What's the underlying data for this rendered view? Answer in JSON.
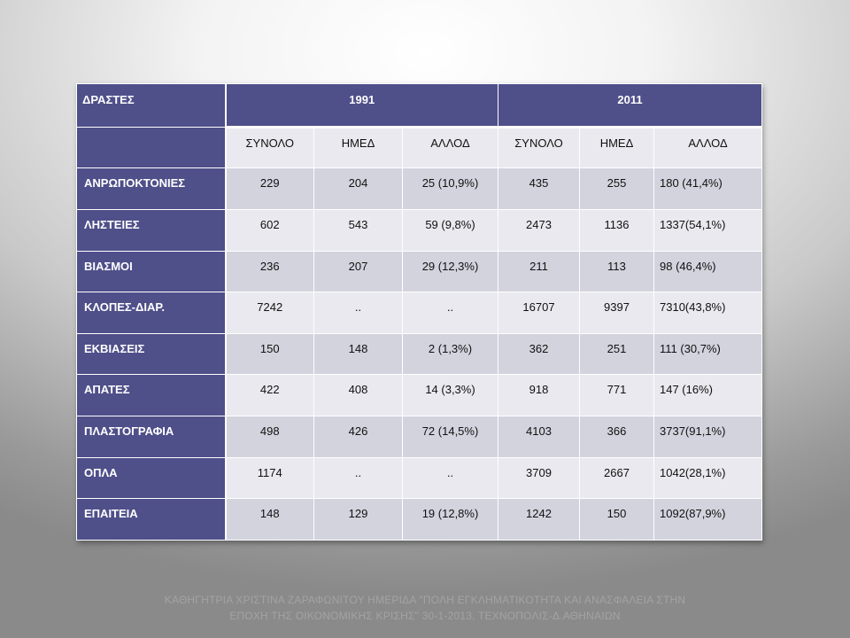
{
  "table": {
    "corner_label": "ΔΡΑΣΤΕΣ",
    "years": [
      "1991",
      "2011"
    ],
    "subheaders": [
      "ΣΥΝΟΛΟ",
      "ΗΜΕΔ",
      "ΑΛΛΟΔ",
      "ΣΥΝΟΛΟ",
      "ΗΜΕΔ",
      "ΑΛΛΟΔ"
    ],
    "rows": [
      {
        "label": "ΑΝΡΩΠΟΚΤΟΝΙΕΣ",
        "values": [
          "229",
          "204",
          "25 (10,9%)",
          "435",
          "255",
          "180 (41,4%)"
        ]
      },
      {
        "label": "ΛΗΣΤΕΙΕΣ",
        "values": [
          "602",
          "543",
          "59 (9,8%)",
          "2473",
          "1136",
          "1337(54,1%)"
        ]
      },
      {
        "label": "ΒΙΑΣΜΟΙ",
        "values": [
          "236",
          "207",
          "29 (12,3%)",
          "211",
          "113",
          "98 (46,4%)"
        ]
      },
      {
        "label": "ΚΛΟΠΕΣ-ΔΙΑΡ.",
        "values": [
          "7242",
          "..",
          "..",
          "16707",
          "9397",
          "7310(43,8%)"
        ]
      },
      {
        "label": "ΕΚΒΙΑΣΕΙΣ",
        "values": [
          "150",
          "148",
          "2 (1,3%)",
          "362",
          "251",
          "111 (30,7%)"
        ]
      },
      {
        "label": "ΑΠΑΤΕΣ",
        "values": [
          "422",
          "408",
          "14 (3,3%)",
          "918",
          "771",
          "147 (16%)"
        ]
      },
      {
        "label": "ΠΛΑΣΤΟΓΡΑΦΙΑ",
        "values": [
          "498",
          "426",
          "72 (14,5%)",
          "4103",
          "366",
          "3737(91,1%)"
        ]
      },
      {
        "label": "ΟΠΛΑ",
        "values": [
          "1174",
          "..",
          "..",
          "3709",
          "2667",
          "1042(28,1%)"
        ]
      },
      {
        "label": "ΕΠΑΙΤΕΙΑ",
        "values": [
          "148",
          "129",
          "19 (12,8%)",
          "1242",
          "150",
          "1092(87,9%)"
        ]
      }
    ]
  },
  "footer": {
    "line1": "ΚΑΘΗΓΗΤΡΙΑ ΧΡΙΣΤΙΝΑ ΖΑΡΑΦΩΝΙΤΟΥ ΗΜΕΡΙΔΑ \"ΠΟΛΗ ΕΓΚΛΗΜΑΤΙΚΟΤΗΤΑ ΚΑΙ ΑΝΑΣΦΑΛΕΙΑ ΣΤΗΝ",
    "line2": "ΕΠΟΧΗ ΤΗΣ ΟΙΚΟΝΟΜΙΚΗΣ ΚΡΙΣΗΣ\" 30-1-2013, ΤΕΧΝΟΠΟΛΙΣ-Δ.ΑΘΗΝΑΙΩΝ"
  },
  "colors": {
    "header_bg": "#4f4f8a",
    "row_odd": "#d3d3de",
    "row_even": "#e9e9ef"
  }
}
